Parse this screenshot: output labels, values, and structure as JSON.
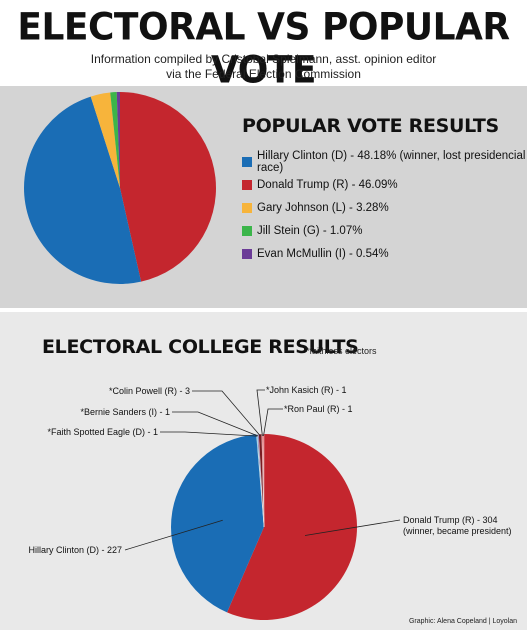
{
  "title": "ELECTORAL VS POPULAR VOTE",
  "subtitle_line1": "Information compiled by Cristobal Spielmann, asst. opinion editor",
  "subtitle_line2": "via the Federal Election Commission",
  "credit": "Graphic: Alena Copeland | Loyolan",
  "chart_data": [
    {
      "type": "pie",
      "title": "POPULAR VOTE RESULTS",
      "slices": [
        {
          "label": "Hillary Clinton (D) - 48.18% (winner, lost presidencial race)",
          "value": 48.18,
          "color": "#1a6db5"
        },
        {
          "label": "Donald Trump (R) - 46.09%",
          "value": 46.09,
          "color": "#c4262e"
        },
        {
          "label": "Gary Johnson (L) - 3.28%",
          "value": 3.28,
          "color": "#f7b43b"
        },
        {
          "label": "Jill Stein (G) - 1.07%",
          "value": 1.07,
          "color": "#3bb54a"
        },
        {
          "label": "Evan McMullin (I) - 0.54%",
          "value": 0.54,
          "color": "#6b3b97"
        }
      ],
      "legend": "right"
    },
    {
      "type": "pie",
      "title": "ELECTORAL COLLEGE RESULTS",
      "note": "*faithless electors",
      "slices": [
        {
          "label": "Donald Trump (R) - 304",
          "sublabel": "(winner, became president)",
          "value": 304,
          "color": "#c4262e"
        },
        {
          "label": "Hillary Clinton (D) - 227",
          "value": 227,
          "color": "#1a6db5"
        },
        {
          "label": "*Faith Spotted Eagle (D) - 1",
          "value": 1,
          "color": "#5ec2e0"
        },
        {
          "label": "*Bernie Sanders (I) - 1",
          "value": 1,
          "color": "#6b3b97"
        },
        {
          "label": "*Colin Powell (R) - 3",
          "value": 3,
          "color": "#7a1c22"
        },
        {
          "label": "*John Kasich (R) - 1",
          "value": 1,
          "color": "#e8343c"
        },
        {
          "label": "*Ron Paul (R) - 1",
          "value": 1,
          "color": "#e25b61"
        }
      ]
    }
  ]
}
